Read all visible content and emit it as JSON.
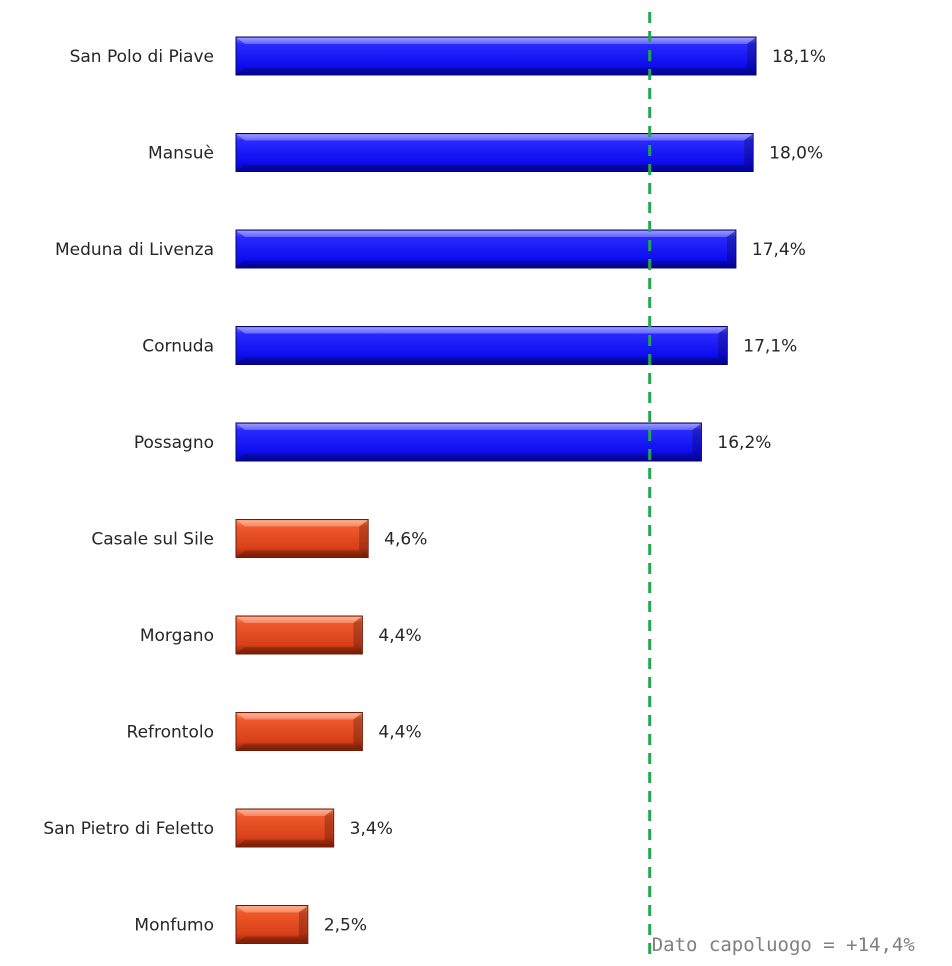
{
  "chart_data": {
    "type": "bar",
    "orientation": "horizontal",
    "categories": [
      "San Polo di Piave",
      "Mansuè",
      "Meduna di Livenza",
      "Cornuda",
      "Possagno",
      "Casale sul Sile",
      "Morgano",
      "Refrontolo",
      "San Pietro di Feletto",
      "Monfumo"
    ],
    "values": [
      18.1,
      18.0,
      17.4,
      17.1,
      16.2,
      4.6,
      4.4,
      4.4,
      3.4,
      2.5
    ],
    "value_labels": [
      "18,1%",
      "18,0%",
      "17,4%",
      "17,1%",
      "16,2%",
      "4,6%",
      "4,4%",
      "4,4%",
      "3,4%",
      "2,5%"
    ],
    "bar_colors": [
      "#1414ff",
      "#1414ff",
      "#1414ff",
      "#1414ff",
      "#1414ff",
      "#e04a1e",
      "#e04a1e",
      "#e04a1e",
      "#e04a1e",
      "#e04a1e"
    ],
    "reference_line": {
      "value": 14.4,
      "label": "Dato capoluogo = +14,4%",
      "color": "#1fa84f",
      "style": "dashed"
    },
    "xlim": [
      0,
      20
    ],
    "grid": false,
    "title": "",
    "xlabel": "",
    "ylabel": ""
  }
}
